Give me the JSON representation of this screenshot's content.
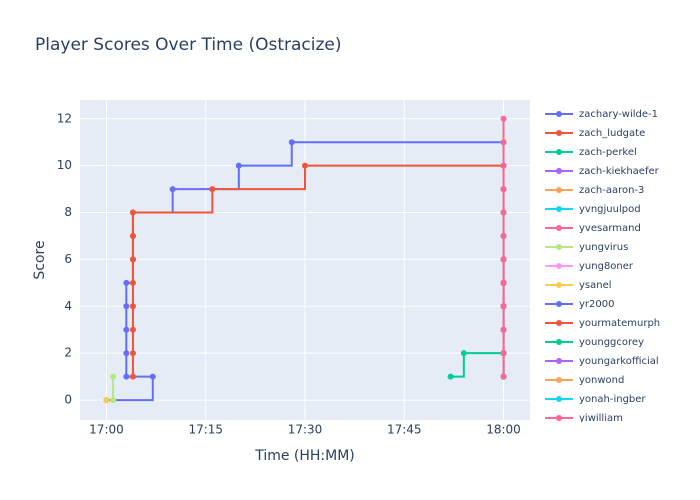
{
  "chart_data": {
    "type": "line",
    "line_shape": "hv",
    "title": "Player Scores Over Time (Ostracize)",
    "x_label": "Time (HH:MM)",
    "y_label": "Score",
    "xlim": [
      "16:56",
      "18:04"
    ],
    "xticks": [
      "17:00",
      "17:15",
      "17:30",
      "17:45",
      "18:00"
    ],
    "ylim": [
      -0.85,
      12.8
    ],
    "yticks": [
      0,
      2,
      4,
      6,
      8,
      10,
      12
    ],
    "grid": true,
    "series": [
      {
        "name": "zachary-wilde-1",
        "color": "#636efa",
        "x": [
          "17:00",
          "17:07",
          "17:03",
          "17:03",
          "17:03",
          "17:03",
          "17:03",
          "17:04",
          "17:04",
          "17:04",
          "17:10",
          "17:20",
          "17:28",
          "18:00"
        ],
        "values": [
          0,
          1,
          1,
          2,
          3,
          4,
          5,
          6,
          7,
          8,
          9,
          10,
          11,
          11
        ]
      },
      {
        "name": "zach_ludgate",
        "color": "#ef553b",
        "x": [
          "17:04",
          "17:04",
          "17:04",
          "17:04",
          "17:04",
          "17:04",
          "17:04",
          "17:04",
          "17:16",
          "17:30",
          "18:00"
        ],
        "values": [
          1,
          2,
          3,
          4,
          5,
          6,
          7,
          8,
          9,
          10,
          10
        ]
      },
      {
        "name": "zach-perkel",
        "color": "#00cc96",
        "x": [
          "17:52",
          "17:54",
          "18:00"
        ],
        "values": [
          1,
          2,
          2
        ]
      },
      {
        "name": "zach-kiekhaefer",
        "color": "#ab63fa",
        "x": [
          "18:00",
          "18:00",
          "18:00",
          "18:00",
          "18:00",
          "18:00",
          "18:00"
        ],
        "values": [
          1,
          2,
          3,
          4,
          5,
          6,
          7
        ]
      },
      {
        "name": "zach-aaron-3",
        "color": "#ffa15a",
        "x": [
          "18:00",
          "18:00",
          "18:00",
          "18:00",
          "18:00",
          "18:00",
          "18:00",
          "18:00",
          "18:00"
        ],
        "values": [
          1,
          2,
          3,
          4,
          5,
          6,
          7,
          8,
          9
        ]
      },
      {
        "name": "yvngjuulpod",
        "color": "#19d3f3",
        "x": [
          "18:00",
          "18:00",
          "18:00",
          "18:00",
          "18:00",
          "18:00",
          "18:00",
          "18:00",
          "18:00",
          "18:00",
          "18:00"
        ],
        "values": [
          1,
          2,
          3,
          4,
          5,
          6,
          7,
          8,
          9,
          10,
          11
        ]
      },
      {
        "name": "yvesarmand",
        "color": "#ff6692",
        "x": [
          "18:00",
          "18:00",
          "18:00",
          "18:00",
          "18:00",
          "18:00",
          "18:00",
          "18:00",
          "18:00",
          "18:00",
          "18:00",
          "18:00"
        ],
        "values": [
          1,
          2,
          3,
          4,
          5,
          6,
          7,
          8,
          9,
          10,
          11,
          12
        ]
      },
      {
        "name": "yungvirus",
        "color": "#b6e880",
        "x": [
          "17:01",
          "17:01"
        ],
        "values": [
          0,
          1
        ]
      },
      {
        "name": "yung8oner",
        "color": "#ff97ff",
        "x": [
          "18:00",
          "18:00",
          "18:00",
          "18:00",
          "18:00"
        ],
        "values": [
          1,
          2,
          3,
          4,
          5
        ]
      },
      {
        "name": "ysanel",
        "color": "#fecb52",
        "x": [
          "17:00"
        ],
        "values": [
          0
        ]
      },
      {
        "name": "yr2000",
        "color": "#636efa",
        "x": [
          "18:00",
          "18:00"
        ],
        "values": [
          1,
          2
        ]
      },
      {
        "name": "yourmatemurph",
        "color": "#ef553b",
        "x": [
          "18:00",
          "18:00",
          "18:00",
          "18:00",
          "18:00",
          "18:00"
        ],
        "values": [
          1,
          2,
          3,
          4,
          5,
          6
        ]
      },
      {
        "name": "younggcorey",
        "color": "#00cc96",
        "x": [
          "18:00",
          "18:00",
          "18:00",
          "18:00",
          "18:00",
          "18:00",
          "18:00",
          "18:00"
        ],
        "values": [
          1,
          2,
          3,
          4,
          5,
          6,
          7,
          8
        ]
      },
      {
        "name": "youngarkofficial",
        "color": "#ab63fa",
        "x": [
          "18:00",
          "18:00",
          "18:00",
          "18:00",
          "18:00"
        ],
        "values": [
          1,
          2,
          3,
          4,
          5
        ]
      },
      {
        "name": "yonwond",
        "color": "#ffa15a",
        "x": [
          "18:00",
          "18:00",
          "18:00"
        ],
        "values": [
          1,
          2,
          3
        ]
      },
      {
        "name": "yonah-ingber",
        "color": "#19d3f3",
        "x": [
          "18:00",
          "18:00",
          "18:00",
          "18:00"
        ],
        "values": [
          1,
          2,
          3,
          4
        ]
      },
      {
        "name": "yiwilliam",
        "color": "#ff6692",
        "x": [
          "18:00",
          "18:00",
          "18:00",
          "18:00",
          "18:00",
          "18:00",
          "18:00",
          "18:00",
          "18:00",
          "18:00"
        ],
        "values": [
          1,
          2,
          3,
          4,
          5,
          6,
          7,
          8,
          9,
          10
        ]
      }
    ]
  }
}
